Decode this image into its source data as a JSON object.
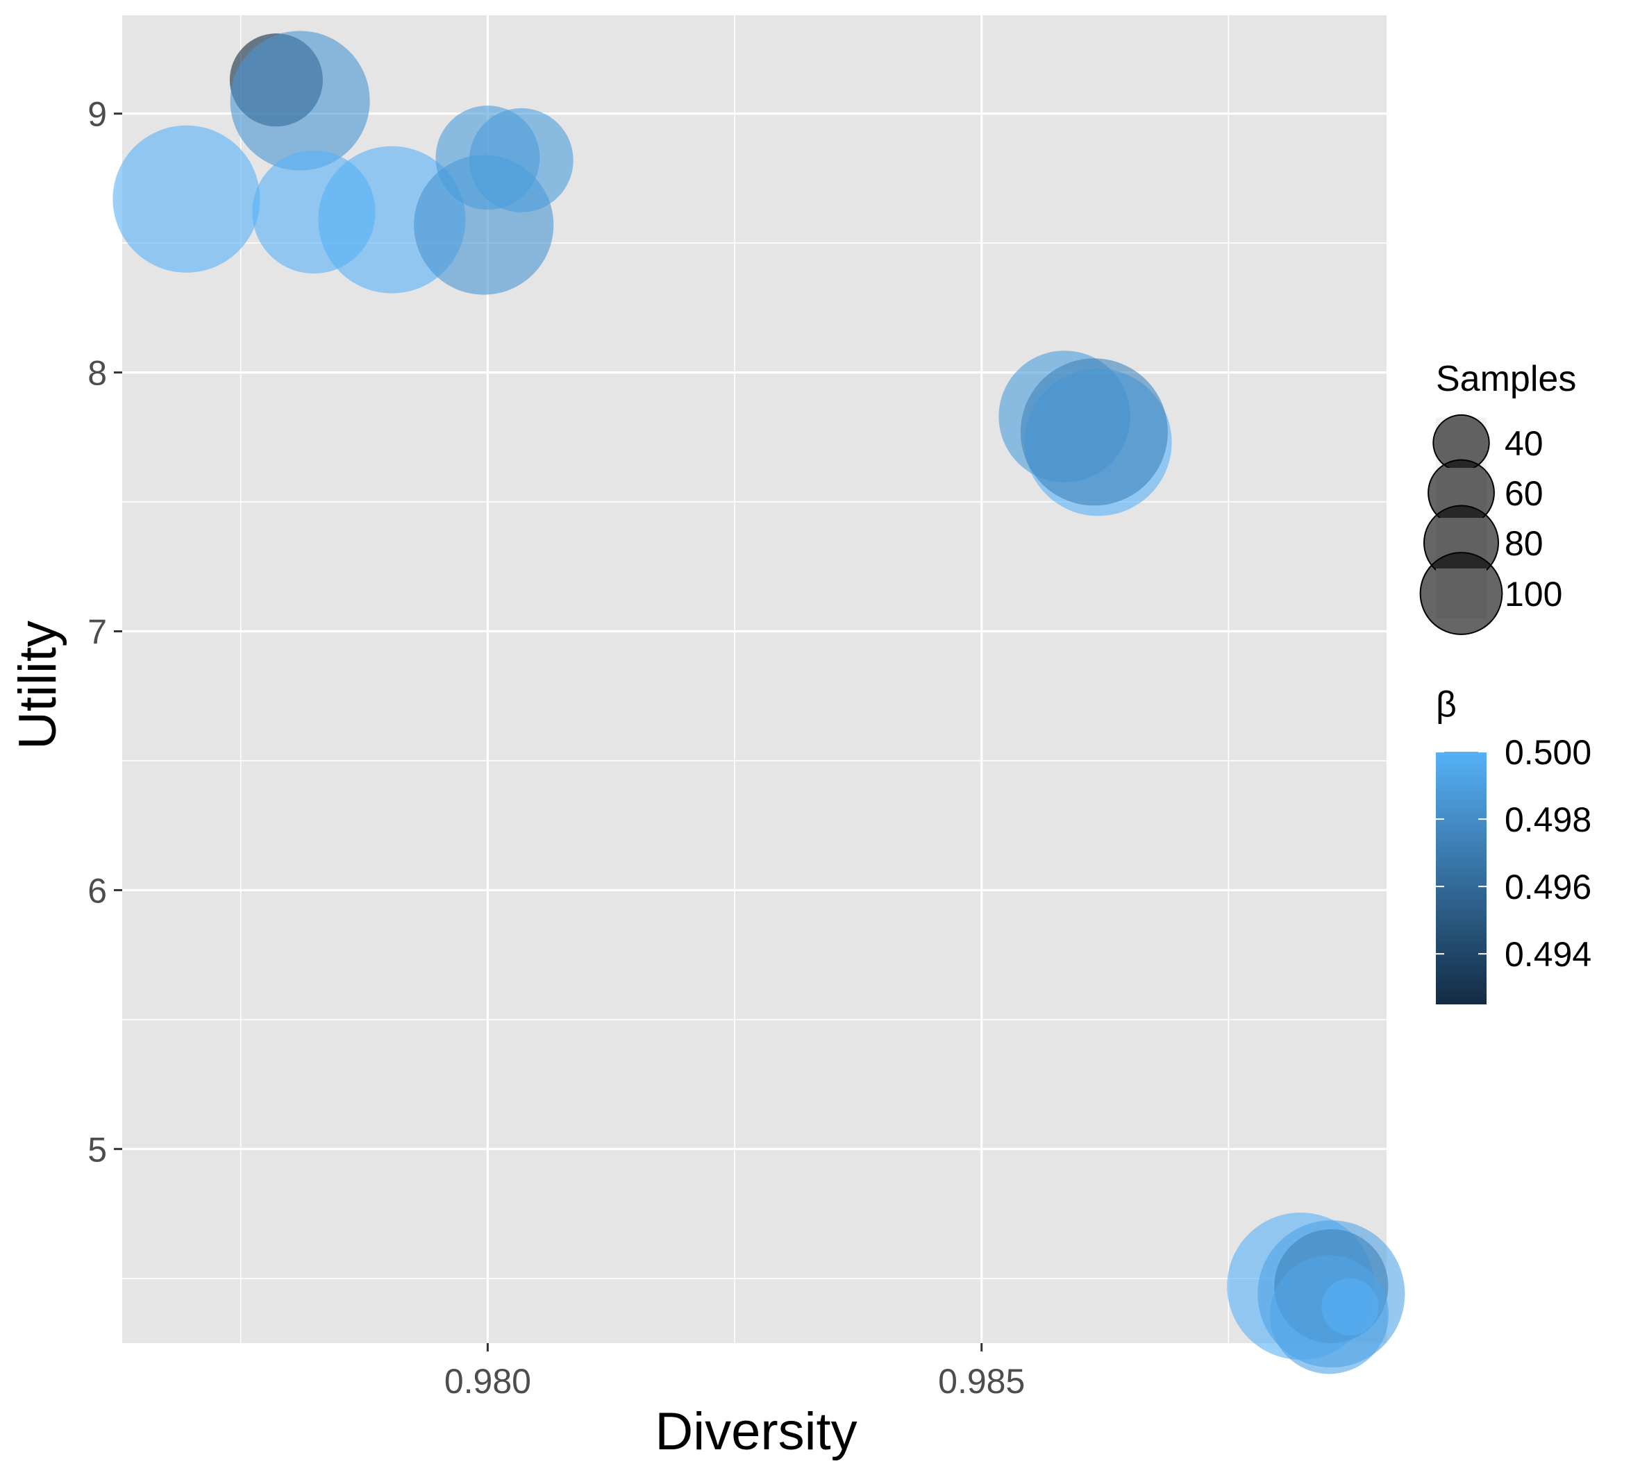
{
  "chart_data": {
    "type": "scatter",
    "xlabel": "Diversity",
    "ylabel": "Utility",
    "xlim": [
      0.9763,
      0.9891
    ],
    "ylim": [
      4.25,
      9.38
    ],
    "x_ticks": [
      0.98,
      0.985
    ],
    "x_tick_labels": [
      "0.980",
      "0.985"
    ],
    "x_minor_ticks": [
      0.9775,
      0.9825,
      0.9875
    ],
    "y_ticks": [
      5,
      6,
      7,
      8,
      9
    ],
    "y_tick_labels": [
      "5",
      "6",
      "7",
      "8",
      "9"
    ],
    "y_minor_ticks": [
      4.5,
      5.5,
      6.5,
      7.5,
      8.5
    ],
    "grid": true,
    "panel_background": "#e5e5e5",
    "grid_color": "#ffffff",
    "point_alpha": 0.6,
    "legends": {
      "position": "right",
      "size": {
        "title": "Samples",
        "breaks": [
          40,
          60,
          80,
          100
        ],
        "labels": [
          "40",
          "60",
          "80",
          "100"
        ]
      },
      "color": {
        "title": "β",
        "low_color": "#132b43",
        "high_color": "#56b1f7",
        "range": [
          0.4925,
          0.5
        ],
        "breaks": [
          0.494,
          0.496,
          0.498,
          0.5
        ],
        "labels": [
          "0.494",
          "0.496",
          "0.498",
          "0.500"
        ]
      }
    },
    "points": [
      {
        "x": 0.97695,
        "y": 8.67,
        "samples": 100,
        "beta": 0.5
      },
      {
        "x": 0.97786,
        "y": 9.13,
        "samples": 40,
        "beta": 0.4925
      },
      {
        "x": 0.9781,
        "y": 9.05,
        "samples": 90,
        "beta": 0.4985
      },
      {
        "x": 0.97824,
        "y": 8.62,
        "samples": 70,
        "beta": 0.5
      },
      {
        "x": 0.97903,
        "y": 8.59,
        "samples": 100,
        "beta": 0.5
      },
      {
        "x": 0.97996,
        "y": 8.57,
        "samples": 90,
        "beta": 0.4985
      },
      {
        "x": 0.98,
        "y": 8.83,
        "samples": 50,
        "beta": 0.4988
      },
      {
        "x": 0.98034,
        "y": 8.82,
        "samples": 50,
        "beta": 0.4988
      },
      {
        "x": 0.98584,
        "y": 7.83,
        "samples": 80,
        "beta": 0.4988
      },
      {
        "x": 0.98618,
        "y": 7.73,
        "samples": 100,
        "beta": 0.5
      },
      {
        "x": 0.98614,
        "y": 7.77,
        "samples": 100,
        "beta": 0.4975
      },
      {
        "x": 0.98823,
        "y": 4.47,
        "samples": 100,
        "beta": 0.5
      },
      {
        "x": 0.98854,
        "y": 4.44,
        "samples": 100,
        "beta": 0.4993
      },
      {
        "x": 0.98854,
        "y": 4.47,
        "samples": 60,
        "beta": 0.4975
      },
      {
        "x": 0.98852,
        "y": 4.36,
        "samples": 65,
        "beta": 0.4993
      },
      {
        "x": 0.98873,
        "y": 4.39,
        "samples": 15,
        "beta": 0.5
      }
    ]
  }
}
